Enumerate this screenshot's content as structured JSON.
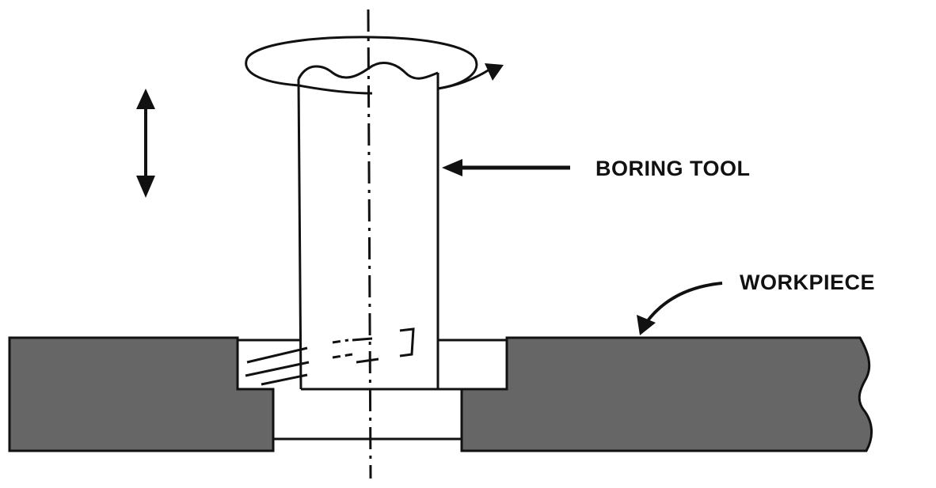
{
  "labels": {
    "boring_tool": "BORING TOOL",
    "workpiece": "WORKPIECE"
  },
  "colors": {
    "workpiece_fill": "#666666",
    "line": "#111111",
    "background": "#ffffff"
  },
  "icons": {
    "rotation": "rotation-arrow-icon",
    "feed": "double-headed-arrow-icon"
  }
}
